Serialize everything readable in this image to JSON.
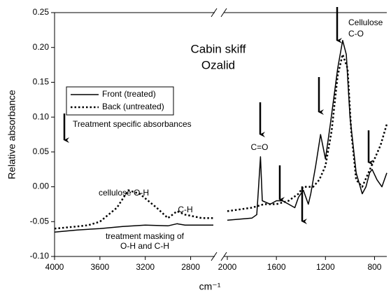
{
  "chart_data": {
    "type": "line",
    "ylabel": "Relative absorbance",
    "xlabel": "cm⁻¹",
    "xlim_segments": [
      [
        4000,
        2600
      ],
      [
        2000,
        700
      ]
    ],
    "xticks": [
      4000,
      3600,
      3200,
      2800,
      2000,
      1600,
      1200,
      800
    ],
    "ylim": [
      -0.1,
      0.25
    ],
    "yticks": [
      {
        "value": -0.1,
        "label": "-0.10"
      },
      {
        "value": -0.05,
        "label": "-0.05"
      },
      {
        "value": 0,
        "label": "0.00"
      },
      {
        "value": 0.05,
        "label": "0.05"
      },
      {
        "value": 0.1,
        "label": "0.10"
      },
      {
        "value": 0.15,
        "label": "0.15"
      },
      {
        "value": 0.2,
        "label": "0.20"
      },
      {
        "value": 0.25,
        "label": "0.25"
      }
    ],
    "legend": "upper left",
    "series": [
      {
        "name": "Front (treated)",
        "color": "#000000",
        "dash": "solid",
        "x": [
          4000,
          3800,
          3600,
          3400,
          3200,
          3000,
          2920,
          2850,
          2700,
          2600,
          2000,
          1800,
          1760,
          1745,
          1730,
          1715,
          1650,
          1600,
          1550,
          1450,
          1420,
          1380,
          1340,
          1320,
          1280,
          1240,
          1200,
          1160,
          1100,
          1060,
          1030,
          1000,
          950,
          900,
          870,
          840,
          820,
          780,
          740,
          700
        ],
        "values": [
          -0.065,
          -0.062,
          -0.06,
          -0.057,
          -0.055,
          -0.056,
          -0.053,
          -0.055,
          -0.055,
          -0.055,
          -0.048,
          -0.045,
          -0.04,
          0.0,
          0.043,
          -0.02,
          -0.025,
          -0.02,
          -0.02,
          -0.03,
          -0.015,
          -0.005,
          -0.025,
          -0.01,
          0.03,
          0.075,
          0.04,
          0.09,
          0.17,
          0.21,
          0.19,
          0.1,
          0.02,
          -0.01,
          0.0,
          0.02,
          0.025,
          0.01,
          0.0,
          0.02
        ]
      },
      {
        "name": "Back (untreated)",
        "color": "#000000",
        "dash": "dotted",
        "x": [
          4000,
          3800,
          3700,
          3600,
          3450,
          3350,
          3250,
          3100,
          3000,
          2920,
          2850,
          2700,
          2600,
          2000,
          1800,
          1700,
          1600,
          1500,
          1420,
          1380,
          1300,
          1250,
          1200,
          1150,
          1100,
          1060,
          1020,
          990,
          950,
          900,
          850,
          800,
          750,
          700
        ],
        "values": [
          -0.06,
          -0.057,
          -0.055,
          -0.05,
          -0.03,
          -0.005,
          -0.01,
          -0.03,
          -0.045,
          -0.035,
          -0.04,
          -0.045,
          -0.045,
          -0.035,
          -0.03,
          -0.025,
          -0.025,
          -0.02,
          -0.01,
          0.0,
          0.0,
          0.01,
          0.03,
          0.08,
          0.16,
          0.19,
          0.17,
          0.08,
          0.01,
          0.0,
          0.02,
          0.04,
          0.06,
          0.09
        ]
      }
    ],
    "annotations": [
      "Cabin skiff",
      "Ozalid",
      "Treatment specific absorbances",
      "cellulose O-H",
      "C-H",
      "treatment masking of",
      "O-H and C-H",
      "C=O",
      "Cellulose",
      "C-O"
    ]
  }
}
